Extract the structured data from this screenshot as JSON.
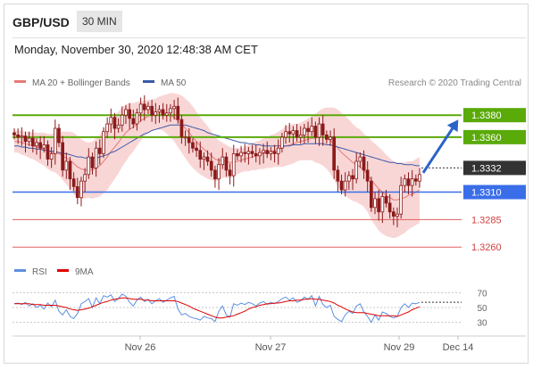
{
  "header": {
    "pair": "GBP/USD",
    "timeframe": "30 MIN",
    "datetime": "Monday, November 30, 2020 12:48:38 AM CET"
  },
  "legend": {
    "ma20": "MA 20 + Bollinger Bands",
    "ma50": "MA 50",
    "source": "Research © 2020 Trading Central",
    "rsi": "RSI",
    "rsi_ma": "9MA"
  },
  "colors": {
    "candle": "#8b1a1a",
    "ma20": "#e87878",
    "ma50": "#3a5aa8",
    "bands_fill": "#f9d6d6",
    "resistance": "#5aaa0a",
    "pivot": "#3a6ee8",
    "support": "#e06060",
    "last": "#333333",
    "rsi_line": "#5b8fe0",
    "rsi_ma_line": "#e00000"
  },
  "chart_data": [
    {
      "type": "candlestick",
      "title": "GBP/USD 30 MIN",
      "x_labels": [
        "Nov 26",
        "Nov 27",
        "Nov 29",
        "Dec 14"
      ],
      "ylim": [
        1.3248,
        1.3398
      ],
      "levels": [
        {
          "value": 1.338,
          "label": "1.3380",
          "kind": "resistance"
        },
        {
          "value": 1.336,
          "label": "1.3360",
          "kind": "resistance"
        },
        {
          "value": 1.3332,
          "label": "1.3332",
          "kind": "last"
        },
        {
          "value": 1.331,
          "label": "1.3310",
          "kind": "pivot"
        },
        {
          "value": 1.3285,
          "label": "1.3285",
          "kind": "support"
        },
        {
          "value": 1.326,
          "label": "1.3260",
          "kind": "support"
        }
      ],
      "close": [
        1.3362,
        1.336,
        1.3361,
        1.3356,
        1.3359,
        1.3352,
        1.3355,
        1.335,
        1.3353,
        1.334,
        1.3345,
        1.3368,
        1.3355,
        1.333,
        1.3338,
        1.3322,
        1.3315,
        1.3305,
        1.332,
        1.3326,
        1.3342,
        1.3332,
        1.335,
        1.3345,
        1.3365,
        1.3372,
        1.3378,
        1.3368,
        1.3371,
        1.338,
        1.3385,
        1.3377,
        1.3372,
        1.3382,
        1.339,
        1.3385,
        1.3388,
        1.338,
        1.3383,
        1.3385,
        1.338,
        1.3382,
        1.3386,
        1.3388,
        1.3376,
        1.336,
        1.336,
        1.3355,
        1.335,
        1.3348,
        1.334,
        1.3342,
        1.3338,
        1.333,
        1.3322,
        1.3335,
        1.3342,
        1.333,
        1.3325,
        1.3345,
        1.3343,
        1.3346,
        1.3345,
        1.3347,
        1.3345,
        1.3343,
        1.3346,
        1.3348,
        1.3345,
        1.3347,
        1.3345,
        1.335,
        1.336,
        1.3365,
        1.3363,
        1.3366,
        1.336,
        1.3362,
        1.3368,
        1.3365,
        1.337,
        1.336,
        1.3372,
        1.3362,
        1.3358,
        1.336,
        1.333,
        1.332,
        1.3312,
        1.332,
        1.3325,
        1.3322,
        1.3338,
        1.3342,
        1.333,
        1.332,
        1.3296,
        1.3304,
        1.3292,
        1.3306,
        1.33,
        1.3292,
        1.3288,
        1.329,
        1.3316,
        1.3322,
        1.3316,
        1.3322,
        1.332,
        1.3326
      ],
      "ma20": [
        1.3356,
        1.3356,
        1.3355,
        1.3354,
        1.3353,
        1.3352,
        1.3351,
        1.335,
        1.3349,
        1.3347,
        1.3346,
        1.3346,
        1.3345,
        1.3343,
        1.3341,
        1.3339,
        1.3336,
        1.3333,
        1.3331,
        1.333,
        1.333,
        1.333,
        1.3332,
        1.3334,
        1.3338,
        1.3342,
        1.3347,
        1.3351,
        1.3355,
        1.336,
        1.3364,
        1.3367,
        1.3369,
        1.3372,
        1.3375,
        1.3377,
        1.3379,
        1.338,
        1.3381,
        1.3382,
        1.3382,
        1.3381,
        1.338,
        1.3378,
        1.3375,
        1.3372,
        1.3368,
        1.3364,
        1.336,
        1.3356,
        1.3352,
        1.3349,
        1.3346,
        1.3343,
        1.334,
        1.3339,
        1.3339,
        1.3338,
        1.3337,
        1.3337,
        1.3338,
        1.3339,
        1.334,
        1.3341,
        1.3342,
        1.3343,
        1.3344,
        1.3345,
        1.3346,
        1.3347,
        1.3348,
        1.3349,
        1.335,
        1.3352,
        1.3353,
        1.3354,
        1.3355,
        1.3356,
        1.3357,
        1.3358,
        1.3359,
        1.3359,
        1.336,
        1.336,
        1.3359,
        1.3357,
        1.3354,
        1.335,
        1.3346,
        1.3343,
        1.334,
        1.3337,
        1.3335,
        1.3333,
        1.333,
        1.3326,
        1.3321,
        1.3317,
        1.3313,
        1.331,
        1.3307,
        1.3305,
        1.3303,
        1.3303,
        1.3304,
        1.3305,
        1.3307,
        1.3308,
        1.331,
        1.3312
      ],
      "ma50": [
        1.3352,
        1.3352,
        1.3351,
        1.3351,
        1.335,
        1.335,
        1.3349,
        1.3349,
        1.3348,
        1.3348,
        1.3347,
        1.3347,
        1.3346,
        1.3345,
        1.3345,
        1.3344,
        1.3343,
        1.3342,
        1.3342,
        1.3341,
        1.3341,
        1.3341,
        1.3341,
        1.3342,
        1.3343,
        1.3344,
        1.3346,
        1.3347,
        1.3349,
        1.3351,
        1.3353,
        1.3355,
        1.3357,
        1.3359,
        1.3361,
        1.3363,
        1.3364,
        1.3366,
        1.3367,
        1.3368,
        1.3369,
        1.337,
        1.3371,
        1.3371,
        1.3371,
        1.3371,
        1.3371,
        1.337,
        1.3369,
        1.3368,
        1.3367,
        1.3366,
        1.3364,
        1.3363,
        1.3362,
        1.3361,
        1.336,
        1.3359,
        1.3358,
        1.3357,
        1.3356,
        1.3355,
        1.3355,
        1.3354,
        1.3354,
        1.3353,
        1.3353,
        1.3352,
        1.3352,
        1.3352,
        1.3352,
        1.3352,
        1.3352,
        1.3352,
        1.3352,
        1.3353,
        1.3353,
        1.3353,
        1.3354,
        1.3354,
        1.3354,
        1.3354,
        1.3354,
        1.3354,
        1.3353,
        1.3353,
        1.3352,
        1.3351,
        1.335,
        1.3349,
        1.3348,
        1.3347,
        1.3346,
        1.3345,
        1.3344,
        1.3343,
        1.3342,
        1.3341,
        1.334,
        1.3339,
        1.3338,
        1.3337,
        1.3337,
        1.3336,
        1.3336,
        1.3335,
        1.3335,
        1.3335,
        1.3334,
        1.3334
      ],
      "band_width": [
        0.001,
        0.001,
        0.0011,
        0.0011,
        0.0012,
        0.0012,
        0.0013,
        0.0014,
        0.0015,
        0.0016,
        0.0017,
        0.0018,
        0.002,
        0.0022,
        0.0024,
        0.0026,
        0.0028,
        0.0028,
        0.0027,
        0.0026,
        0.0025,
        0.0026,
        0.0027,
        0.0028,
        0.0029,
        0.003,
        0.003,
        0.0029,
        0.0028,
        0.0027,
        0.0026,
        0.0024,
        0.0022,
        0.002,
        0.0018,
        0.0016,
        0.0015,
        0.0014,
        0.0014,
        0.0015,
        0.0016,
        0.0018,
        0.002,
        0.0022,
        0.0024,
        0.0026,
        0.0027,
        0.0028,
        0.0028,
        0.0027,
        0.0026,
        0.0025,
        0.0024,
        0.0022,
        0.002,
        0.0018,
        0.0016,
        0.0015,
        0.0014,
        0.0013,
        0.0012,
        0.0011,
        0.0011,
        0.0012,
        0.0012,
        0.0013,
        0.0013,
        0.0014,
        0.0014,
        0.0015,
        0.0015,
        0.0016,
        0.0017,
        0.0018,
        0.0018,
        0.0018,
        0.0017,
        0.0017,
        0.0018,
        0.0019,
        0.002,
        0.0022,
        0.0024,
        0.0026,
        0.0028,
        0.003,
        0.0033,
        0.0035,
        0.0036,
        0.0036,
        0.0036,
        0.0035,
        0.0034,
        0.0034,
        0.0033,
        0.0034,
        0.0036,
        0.0037,
        0.0038,
        0.0038,
        0.0037,
        0.0036,
        0.0035,
        0.0034,
        0.0033,
        0.0032,
        0.0031,
        0.003,
        0.003,
        0.003
      ]
    },
    {
      "type": "line",
      "title": "RSI",
      "ylim": [
        20,
        80
      ],
      "yticks": [
        30,
        50,
        70
      ],
      "series": [
        {
          "name": "RSI",
          "values": [
            55,
            56,
            54,
            57,
            52,
            55,
            50,
            53,
            48,
            56,
            51,
            60,
            45,
            40,
            47,
            38,
            35,
            42,
            55,
            58,
            62,
            50,
            63,
            55,
            66,
            64,
            67,
            58,
            62,
            68,
            65,
            57,
            52,
            60,
            64,
            58,
            61,
            55,
            59,
            62,
            57,
            60,
            63,
            65,
            48,
            40,
            42,
            38,
            36,
            35,
            33,
            38,
            36,
            35,
            31,
            45,
            52,
            40,
            37,
            55,
            53,
            56,
            54,
            57,
            55,
            52,
            56,
            58,
            54,
            57,
            55,
            58,
            62,
            64,
            60,
            63,
            57,
            59,
            64,
            61,
            66,
            52,
            65,
            54,
            50,
            53,
            38,
            34,
            31,
            40,
            45,
            42,
            52,
            55,
            44,
            38,
            30,
            40,
            33,
            44,
            42,
            38,
            36,
            38,
            50,
            55,
            50,
            56,
            55,
            57
          ]
        },
        {
          "name": "9MA",
          "values": [
            55,
            55,
            55,
            55,
            55,
            54,
            54,
            54,
            53,
            53,
            53,
            53,
            52,
            51,
            50,
            48,
            47,
            46,
            47,
            48,
            49,
            51,
            53,
            55,
            57,
            58,
            60,
            61,
            62,
            63,
            63,
            62,
            61,
            61,
            61,
            60,
            60,
            59,
            59,
            59,
            59,
            59,
            59,
            59,
            58,
            56,
            54,
            52,
            49,
            47,
            45,
            43,
            41,
            39,
            37,
            36,
            36,
            37,
            38,
            39,
            41,
            43,
            45,
            48,
            50,
            51,
            53,
            54,
            55,
            55,
            56,
            56,
            57,
            58,
            59,
            59,
            60,
            60,
            61,
            61,
            62,
            61,
            61,
            60,
            59,
            58,
            56,
            53,
            51,
            48,
            46,
            44,
            43,
            43,
            43,
            42,
            41,
            40,
            39,
            39,
            39,
            39,
            39,
            38,
            40,
            42,
            44,
            47,
            49,
            51
          ]
        }
      ]
    }
  ]
}
